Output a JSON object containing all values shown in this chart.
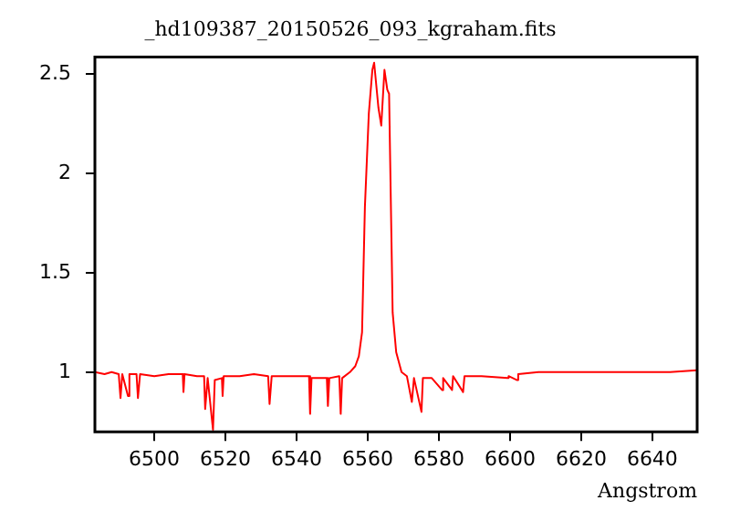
{
  "chart_data": {
    "type": "line",
    "title": "_hd109387_20150526_093_kgraham.fits",
    "xlabel": "Angstrom",
    "x": [
      6483.3,
      6486,
      6488,
      6490,
      6490.5,
      6491,
      6492.6,
      6493,
      6495,
      6495.4,
      6496,
      6500,
      6504,
      6508,
      6508.2,
      6508.5,
      6512,
      6514,
      6514.3,
      6515,
      6516.5,
      6517,
      6519,
      6519.2,
      6519.5,
      6524,
      6528,
      6532,
      6532.4,
      6533,
      6538,
      6543.5,
      6543.8,
      6544.2,
      6548.5,
      6548.8,
      6549.2,
      6552,
      6552.4,
      6552.8,
      6555,
      6556.5,
      6557.5,
      6558.4,
      6559.2,
      6560.3,
      6561.3,
      6561.8,
      6563,
      6563.8,
      6564.7,
      6565.5,
      6566,
      6567,
      6568,
      6569.5,
      6571,
      6572.4,
      6573,
      6575.1,
      6575.5,
      6578,
      6580.9,
      6581.2,
      6583.7,
      6584,
      6586.8,
      6587.2,
      6592,
      6599.3,
      6599.6,
      6602,
      6602.3,
      6608,
      6615,
      6625,
      6635,
      6645,
      6652.6
    ],
    "series": [
      {
        "color": "#ff0000",
        "values": [
          1.0,
          0.99,
          1.0,
          0.99,
          0.87,
          0.99,
          0.88,
          0.99,
          0.99,
          0.87,
          0.99,
          0.98,
          0.99,
          0.99,
          0.9,
          0.99,
          0.98,
          0.98,
          0.815,
          0.97,
          0.71,
          0.96,
          0.97,
          0.88,
          0.98,
          0.98,
          0.99,
          0.98,
          0.84,
          0.98,
          0.98,
          0.98,
          0.79,
          0.97,
          0.97,
          0.83,
          0.97,
          0.98,
          0.79,
          0.97,
          1.0,
          1.03,
          1.08,
          1.2,
          1.83,
          2.3,
          2.52,
          2.556,
          2.33,
          2.24,
          2.52,
          2.42,
          2.4,
          1.3,
          1.1,
          1.0,
          0.98,
          0.85,
          0.97,
          0.8,
          0.97,
          0.97,
          0.91,
          0.97,
          0.91,
          0.98,
          0.9,
          0.98,
          0.98,
          0.97,
          0.98,
          0.96,
          0.99,
          1.0,
          1.0,
          1.0,
          1.0,
          1.0,
          1.01
        ]
      }
    ],
    "xlim": [
      6483.3,
      6652.6
    ],
    "ylim": [
      0.7,
      2.585
    ],
    "xticks": [
      6500,
      6520,
      6540,
      6560,
      6580,
      6600,
      6620,
      6640
    ],
    "yticks": [
      1,
      1.5,
      2,
      2.5
    ],
    "grid": false,
    "legend": false,
    "marker": "none",
    "line_style": "solid"
  }
}
